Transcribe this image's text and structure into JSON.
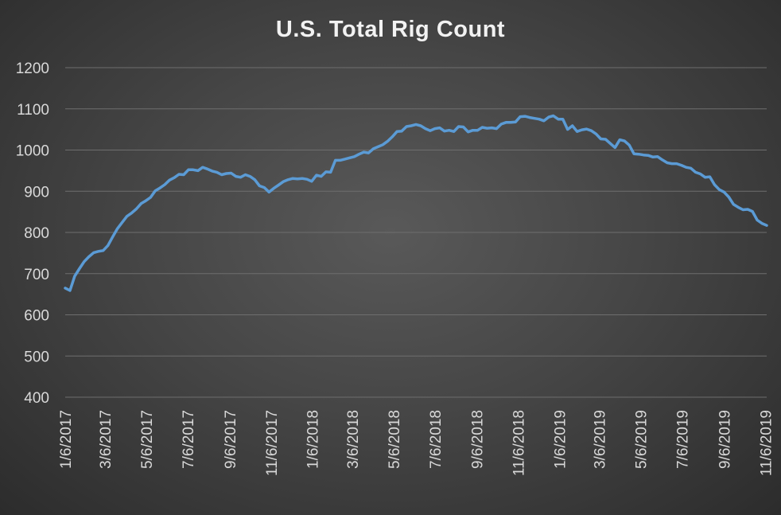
{
  "chart_data": {
    "type": "line",
    "title": "U.S. Total Rig Count",
    "xlabel": "",
    "ylabel": "",
    "ylim": [
      400,
      1200
    ],
    "yticks": [
      400,
      500,
      600,
      700,
      800,
      900,
      1000,
      1100,
      1200
    ],
    "grid": true,
    "legend": "none",
    "xtick_labels": [
      "1/6/2017",
      "3/6/2017",
      "5/6/2017",
      "7/6/2017",
      "9/6/2017",
      "11/6/2017",
      "1/6/2018",
      "3/6/2018",
      "5/6/2018",
      "7/6/2018",
      "9/6/2018",
      "11/6/2018",
      "1/6/2019",
      "3/6/2019",
      "5/6/2019",
      "7/6/2019",
      "9/6/2019",
      "11/6/2019"
    ],
    "series": [
      {
        "color": "#5b9bd5",
        "points": [
          [
            "2017-01-06",
            665
          ],
          [
            "2017-01-13",
            659
          ],
          [
            "2017-01-20",
            694
          ],
          [
            "2017-01-27",
            712
          ],
          [
            "2017-02-03",
            729
          ],
          [
            "2017-02-10",
            741
          ],
          [
            "2017-02-17",
            751
          ],
          [
            "2017-02-24",
            754
          ],
          [
            "2017-03-03",
            756
          ],
          [
            "2017-03-10",
            768
          ],
          [
            "2017-03-17",
            789
          ],
          [
            "2017-03-24",
            809
          ],
          [
            "2017-03-31",
            824
          ],
          [
            "2017-04-07",
            839
          ],
          [
            "2017-04-14",
            847
          ],
          [
            "2017-04-21",
            857
          ],
          [
            "2017-04-28",
            870
          ],
          [
            "2017-05-05",
            877
          ],
          [
            "2017-05-12",
            885
          ],
          [
            "2017-05-19",
            901
          ],
          [
            "2017-05-26",
            908
          ],
          [
            "2017-06-02",
            916
          ],
          [
            "2017-06-09",
            927
          ],
          [
            "2017-06-16",
            933
          ],
          [
            "2017-06-23",
            941
          ],
          [
            "2017-06-30",
            940
          ],
          [
            "2017-07-07",
            952
          ],
          [
            "2017-07-14",
            952
          ],
          [
            "2017-07-21",
            950
          ],
          [
            "2017-07-28",
            958
          ],
          [
            "2017-08-04",
            954
          ],
          [
            "2017-08-11",
            949
          ],
          [
            "2017-08-18",
            946
          ],
          [
            "2017-08-25",
            940
          ],
          [
            "2017-09-01",
            943
          ],
          [
            "2017-09-08",
            944
          ],
          [
            "2017-09-15",
            936
          ],
          [
            "2017-09-22",
            934
          ],
          [
            "2017-09-29",
            940
          ],
          [
            "2017-10-06",
            936
          ],
          [
            "2017-10-13",
            928
          ],
          [
            "2017-10-20",
            913
          ],
          [
            "2017-10-27",
            909
          ],
          [
            "2017-11-03",
            898
          ],
          [
            "2017-11-10",
            907
          ],
          [
            "2017-11-17",
            915
          ],
          [
            "2017-11-24",
            923
          ],
          [
            "2017-12-01",
            928
          ],
          [
            "2017-12-08",
            931
          ],
          [
            "2017-12-15",
            930
          ],
          [
            "2017-12-22",
            931
          ],
          [
            "2017-12-29",
            929
          ],
          [
            "2018-01-05",
            924
          ],
          [
            "2018-01-12",
            939
          ],
          [
            "2018-01-19",
            936
          ],
          [
            "2018-01-26",
            947
          ],
          [
            "2018-02-02",
            946
          ],
          [
            "2018-02-09",
            975
          ],
          [
            "2018-02-16",
            975
          ],
          [
            "2018-02-23",
            978
          ],
          [
            "2018-03-02",
            981
          ],
          [
            "2018-03-09",
            984
          ],
          [
            "2018-03-16",
            990
          ],
          [
            "2018-03-23",
            995
          ],
          [
            "2018-03-30",
            993
          ],
          [
            "2018-04-06",
            1003
          ],
          [
            "2018-04-13",
            1008
          ],
          [
            "2018-04-20",
            1013
          ],
          [
            "2018-04-27",
            1021
          ],
          [
            "2018-05-04",
            1032
          ],
          [
            "2018-05-11",
            1045
          ],
          [
            "2018-05-18",
            1046
          ],
          [
            "2018-05-25",
            1057
          ],
          [
            "2018-06-01",
            1059
          ],
          [
            "2018-06-08",
            1062
          ],
          [
            "2018-06-15",
            1059
          ],
          [
            "2018-06-22",
            1052
          ],
          [
            "2018-06-29",
            1047
          ],
          [
            "2018-07-06",
            1052
          ],
          [
            "2018-07-13",
            1054
          ],
          [
            "2018-07-20",
            1046
          ],
          [
            "2018-07-27",
            1048
          ],
          [
            "2018-08-03",
            1045
          ],
          [
            "2018-08-10",
            1057
          ],
          [
            "2018-08-17",
            1056
          ],
          [
            "2018-08-24",
            1044
          ],
          [
            "2018-08-31",
            1048
          ],
          [
            "2018-09-07",
            1048
          ],
          [
            "2018-09-14",
            1055
          ],
          [
            "2018-09-21",
            1053
          ],
          [
            "2018-09-28",
            1054
          ],
          [
            "2018-10-05",
            1052
          ],
          [
            "2018-10-12",
            1063
          ],
          [
            "2018-10-19",
            1067
          ],
          [
            "2018-10-26",
            1067
          ],
          [
            "2018-11-02",
            1068
          ],
          [
            "2018-11-09",
            1081
          ],
          [
            "2018-11-16",
            1082
          ],
          [
            "2018-11-23",
            1079
          ],
          [
            "2018-11-30",
            1077
          ],
          [
            "2018-12-07",
            1075
          ],
          [
            "2018-12-14",
            1071
          ],
          [
            "2018-12-21",
            1080
          ],
          [
            "2018-12-28",
            1083
          ],
          [
            "2019-01-04",
            1075
          ],
          [
            "2019-01-11",
            1075
          ],
          [
            "2019-01-18",
            1050
          ],
          [
            "2019-01-25",
            1059
          ],
          [
            "2019-02-01",
            1045
          ],
          [
            "2019-02-08",
            1049
          ],
          [
            "2019-02-15",
            1051
          ],
          [
            "2019-02-22",
            1047
          ],
          [
            "2019-03-01",
            1039
          ],
          [
            "2019-03-08",
            1027
          ],
          [
            "2019-03-15",
            1026
          ],
          [
            "2019-03-22",
            1016
          ],
          [
            "2019-03-29",
            1006
          ],
          [
            "2019-04-05",
            1025
          ],
          [
            "2019-04-12",
            1022
          ],
          [
            "2019-04-19",
            1012
          ],
          [
            "2019-04-26",
            991
          ],
          [
            "2019-05-03",
            990
          ],
          [
            "2019-05-10",
            988
          ],
          [
            "2019-05-17",
            987
          ],
          [
            "2019-05-24",
            983
          ],
          [
            "2019-05-31",
            984
          ],
          [
            "2019-06-07",
            976
          ],
          [
            "2019-06-14",
            969
          ],
          [
            "2019-06-21",
            967
          ],
          [
            "2019-06-28",
            967
          ],
          [
            "2019-07-05",
            963
          ],
          [
            "2019-07-12",
            958
          ],
          [
            "2019-07-19",
            956
          ],
          [
            "2019-07-26",
            946
          ],
          [
            "2019-08-02",
            942
          ],
          [
            "2019-08-09",
            934
          ],
          [
            "2019-08-16",
            935
          ],
          [
            "2019-08-23",
            916
          ],
          [
            "2019-08-30",
            904
          ],
          [
            "2019-09-06",
            898
          ],
          [
            "2019-09-13",
            886
          ],
          [
            "2019-09-20",
            868
          ],
          [
            "2019-09-27",
            861
          ],
          [
            "2019-10-04",
            855
          ],
          [
            "2019-10-11",
            856
          ],
          [
            "2019-10-18",
            851
          ],
          [
            "2019-10-25",
            830
          ],
          [
            "2019-11-01",
            822
          ],
          [
            "2019-11-08",
            817
          ]
        ]
      }
    ]
  }
}
